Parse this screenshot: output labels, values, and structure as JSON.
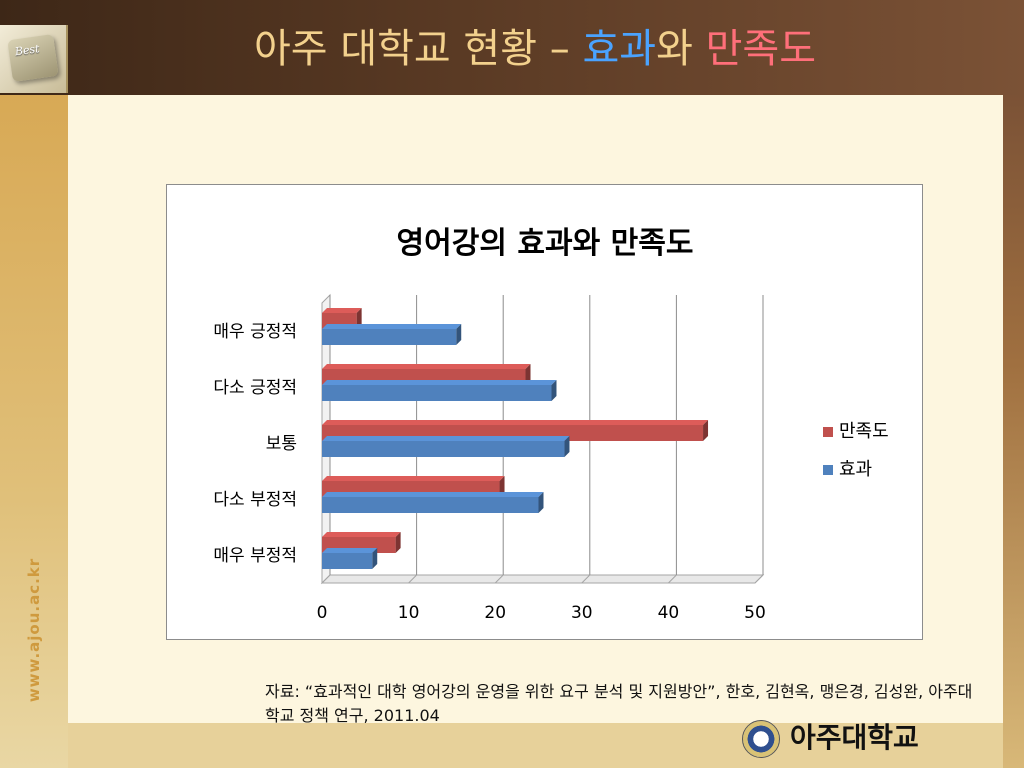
{
  "header": {
    "logo_key_label": "Best",
    "title_main": "아주 대학교 현황 – ",
    "title_blue": "효과",
    "title_connector": "와 ",
    "title_red": "만족도"
  },
  "sidebar": {
    "url": "www.ajou.ac.kr"
  },
  "chart_data": {
    "type": "bar",
    "orientation": "horizontal",
    "title": "영어강의 효과와 만족도",
    "categories": [
      "매우 긍정적",
      "다소 긍정적",
      "보통",
      "다소 부정적",
      "매우 부정적"
    ],
    "series": [
      {
        "name": "만족도",
        "color": "#c0504d",
        "values": [
          4,
          23.5,
          44,
          20.5,
          8.5
        ]
      },
      {
        "name": "효과",
        "color": "#4f81bd",
        "values": [
          15.5,
          26.5,
          28,
          25,
          5.8
        ]
      }
    ],
    "xlim": [
      0,
      50
    ],
    "xticks": [
      "0",
      "10",
      "20",
      "30",
      "40",
      "50"
    ],
    "grid": true,
    "legend_placement": "right",
    "legend": [
      "만족도",
      "효과"
    ]
  },
  "source_note": "자료: “효과적인 대학 영어강의 운영을 위한 요구 분석 및 지원방안”, 한호, 김현옥, 맹은경, 김성완, 아주대학교 정책 연구, 2011.04",
  "footer": {
    "university_name": "아주대학교"
  }
}
